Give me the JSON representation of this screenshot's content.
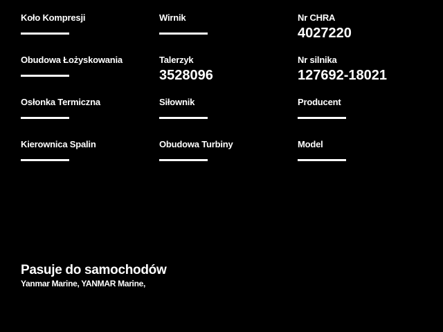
{
  "page": {
    "background_color": "#000000",
    "text_color": "#ffffff"
  },
  "specs": {
    "empty_value_marker": "horizontal-line",
    "cells": [
      {
        "label": "Koło Kompresji",
        "value": null
      },
      {
        "label": "Wirnik",
        "value": null
      },
      {
        "label": "Nr CHRA",
        "value": "4027220"
      },
      {
        "label": "Obudowa Łożyskowania",
        "value": null
      },
      {
        "label": "Talerzyk",
        "value": "3528096"
      },
      {
        "label": "Nr silnika",
        "value": "127692-18021"
      },
      {
        "label": "Osłonka Termiczna",
        "value": null
      },
      {
        "label": "Siłownik",
        "value": null
      },
      {
        "label": "Producent",
        "value": null
      },
      {
        "label": "Kierownica Spalin",
        "value": null
      },
      {
        "label": "Obudowa Turbiny",
        "value": null
      },
      {
        "label": "Model",
        "value": null
      }
    ]
  },
  "fitment": {
    "heading": "Pasuje do samochodów",
    "vehicles": "Yanmar Marine, YANMAR Marine,"
  }
}
